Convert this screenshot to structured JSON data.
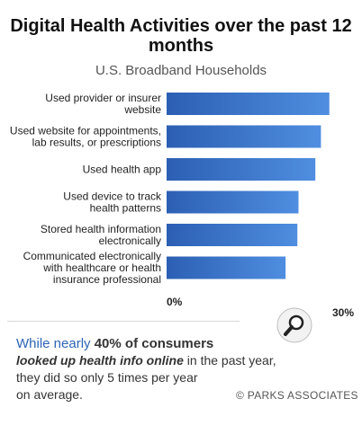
{
  "chart_data": {
    "type": "bar",
    "orientation": "horizontal",
    "title": "Digital Health Activities over the past 12 months",
    "subtitle": "U.S. Broadband Households",
    "categories": [
      [
        "Used provider or insurer",
        "website"
      ],
      [
        "Used website for appointments,",
        "lab results, or prescriptions"
      ],
      [
        "Used health app"
      ],
      [
        "Used device to track",
        "health patterns"
      ],
      [
        "Stored health information",
        "electronically"
      ],
      [
        "Communicated electronically",
        "with healthcare or health",
        "insurance professional"
      ]
    ],
    "values": [
      29.0,
      27.5,
      26.5,
      23.5,
      23.3,
      21.2
    ],
    "xlim": [
      0,
      30
    ],
    "tick_labels": [
      "0%",
      "30%"
    ],
    "bar_color": "#3a6fc6"
  },
  "footer": {
    "note_line1_prefix": "While nearly ",
    "note_line1_bold": "40%",
    "note_line1_suffix": " of consumers",
    "note_line2_italic": "looked up health info online",
    "note_line2_rest": " in the past year,",
    "note_line3": "they did so only 5 times per year",
    "note_line4": "on average.",
    "copyright": "© PARKS ASSOCIATES"
  },
  "icons": {
    "zoom": "magnifier-icon"
  }
}
